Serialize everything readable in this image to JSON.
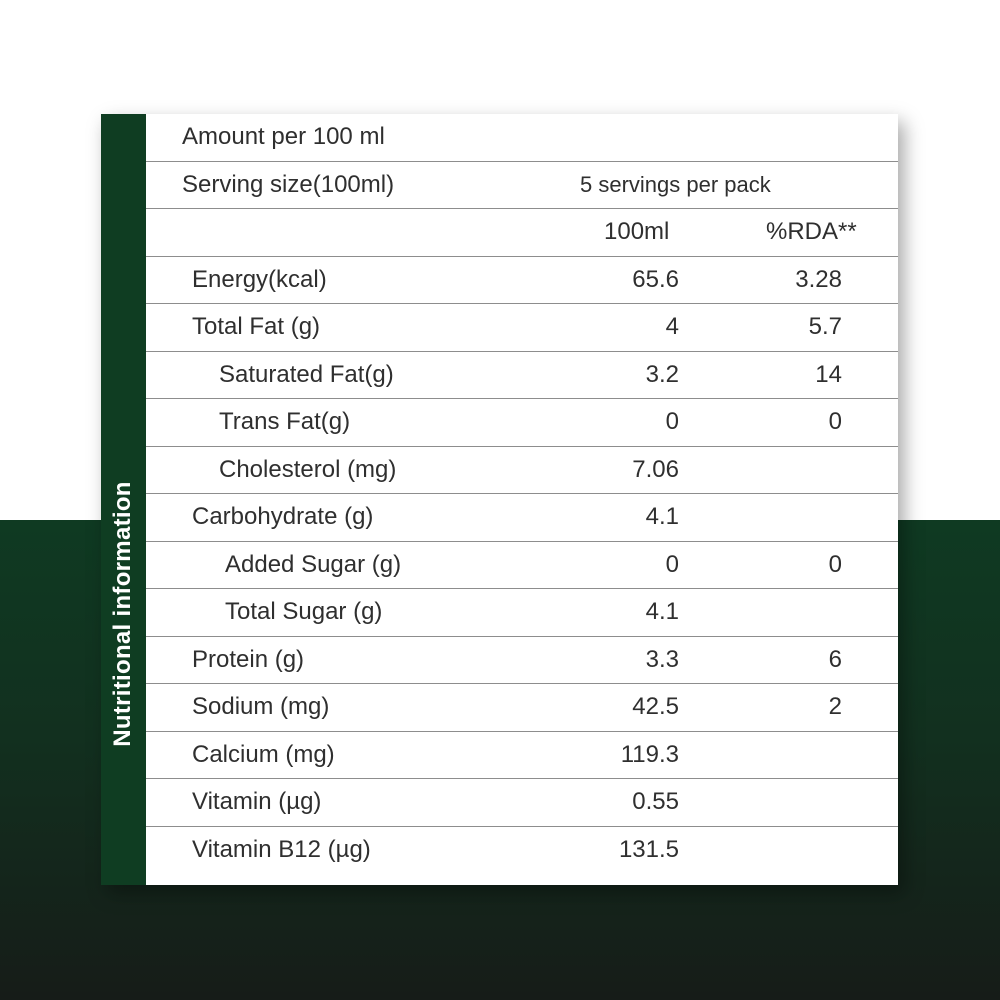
{
  "sidebar": {
    "title": "Nutritional information"
  },
  "header": {
    "amount": "Amount per 100 ml",
    "serving_size": "Serving size(100ml)",
    "servings_per_pack": "5 servings per pack",
    "col_amount": "100ml",
    "col_rda": "%RDA**"
  },
  "rows": [
    {
      "label": "Energy(kcal)",
      "value": "65.6",
      "rda": "3.28",
      "indent": 0
    },
    {
      "label": "Total Fat (g)",
      "value": "4",
      "rda": "5.7",
      "indent": 0
    },
    {
      "label": "Saturated Fat(g)",
      "value": "3.2",
      "rda": "14",
      "indent": 1
    },
    {
      "label": "Trans Fat(g)",
      "value": "0",
      "rda": "0",
      "indent": 1
    },
    {
      "label": "Cholesterol (mg)",
      "value": "7.06",
      "rda": "",
      "indent": 1
    },
    {
      "label": "Carbohydrate (g)",
      "value": "4.1",
      "rda": "",
      "indent": 0
    },
    {
      "label": "Added Sugar (g)",
      "value": "0",
      "rda": "0",
      "indent": 2
    },
    {
      "label": "Total Sugar (g)",
      "value": "4.1",
      "rda": "",
      "indent": 2
    },
    {
      "label": "Protein (g)",
      "value": "3.3",
      "rda": "6",
      "indent": 0
    },
    {
      "label": "Sodium (mg)",
      "value": "42.5",
      "rda": "2",
      "indent": 0
    },
    {
      "label": "Calcium (mg)",
      "value": "119.3",
      "rda": "",
      "indent": 0
    },
    {
      "label": "Vitamin (µg)",
      "value": "0.55",
      "rda": "",
      "indent": 0
    },
    {
      "label": "Vitamin B12 (µg)",
      "value": "131.5",
      "rda": "",
      "indent": 0
    }
  ]
}
